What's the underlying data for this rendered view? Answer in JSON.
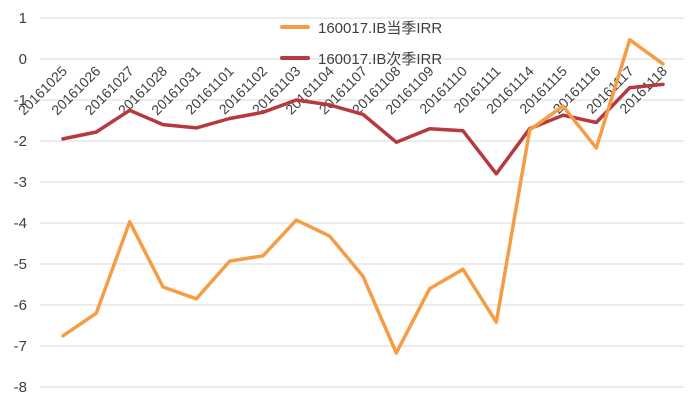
{
  "chart_data": {
    "type": "line",
    "title": "",
    "xlabel": "",
    "ylabel": "",
    "categories": [
      "20161025",
      "20161026",
      "20161027",
      "20161028",
      "20161031",
      "20161101",
      "20161102",
      "20161103",
      "20161104",
      "20161107",
      "20161108",
      "20161109",
      "20161110",
      "20161111",
      "20161114",
      "20161115",
      "20161116",
      "20161117",
      "20161118"
    ],
    "yticks": [
      "1",
      "0",
      "-1",
      "-2",
      "-3",
      "-4",
      "-5",
      "-6",
      "-7",
      "-8"
    ],
    "ylim": [
      -8,
      1
    ],
    "grid": true,
    "legend_position": "top-center",
    "series": [
      {
        "name": "160017.IB当季IRR",
        "color": "#F59D45",
        "values": [
          -6.75,
          -6.2,
          -3.97,
          -5.56,
          -5.85,
          -4.93,
          -4.8,
          -3.93,
          -4.32,
          -5.3,
          -7.17,
          -5.6,
          -5.13,
          -6.42,
          -1.73,
          -1.15,
          -2.17,
          0.47,
          -0.12
        ]
      },
      {
        "name": "160017.IB次季IRR",
        "color": "#B5393E",
        "values": [
          -1.95,
          -1.78,
          -1.25,
          -1.6,
          -1.68,
          -1.45,
          -1.3,
          -1.0,
          -1.12,
          -1.35,
          -2.03,
          -1.7,
          -1.75,
          -2.8,
          -1.7,
          -1.37,
          -1.55,
          -0.7,
          -0.62
        ]
      }
    ]
  }
}
